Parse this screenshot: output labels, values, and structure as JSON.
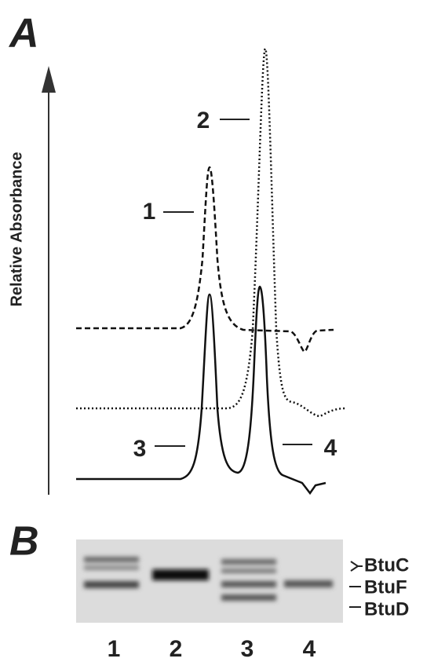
{
  "panel_a": {
    "label": "A",
    "y_axis_label": "Relative Absorbance",
    "peak_labels": [
      "1",
      "2",
      "3",
      "4"
    ]
  },
  "panel_b": {
    "label": "B",
    "band_labels": [
      "BtuC",
      "BtuF",
      "BtuD"
    ],
    "lane_labels": [
      "1",
      "2",
      "3",
      "4"
    ]
  }
}
